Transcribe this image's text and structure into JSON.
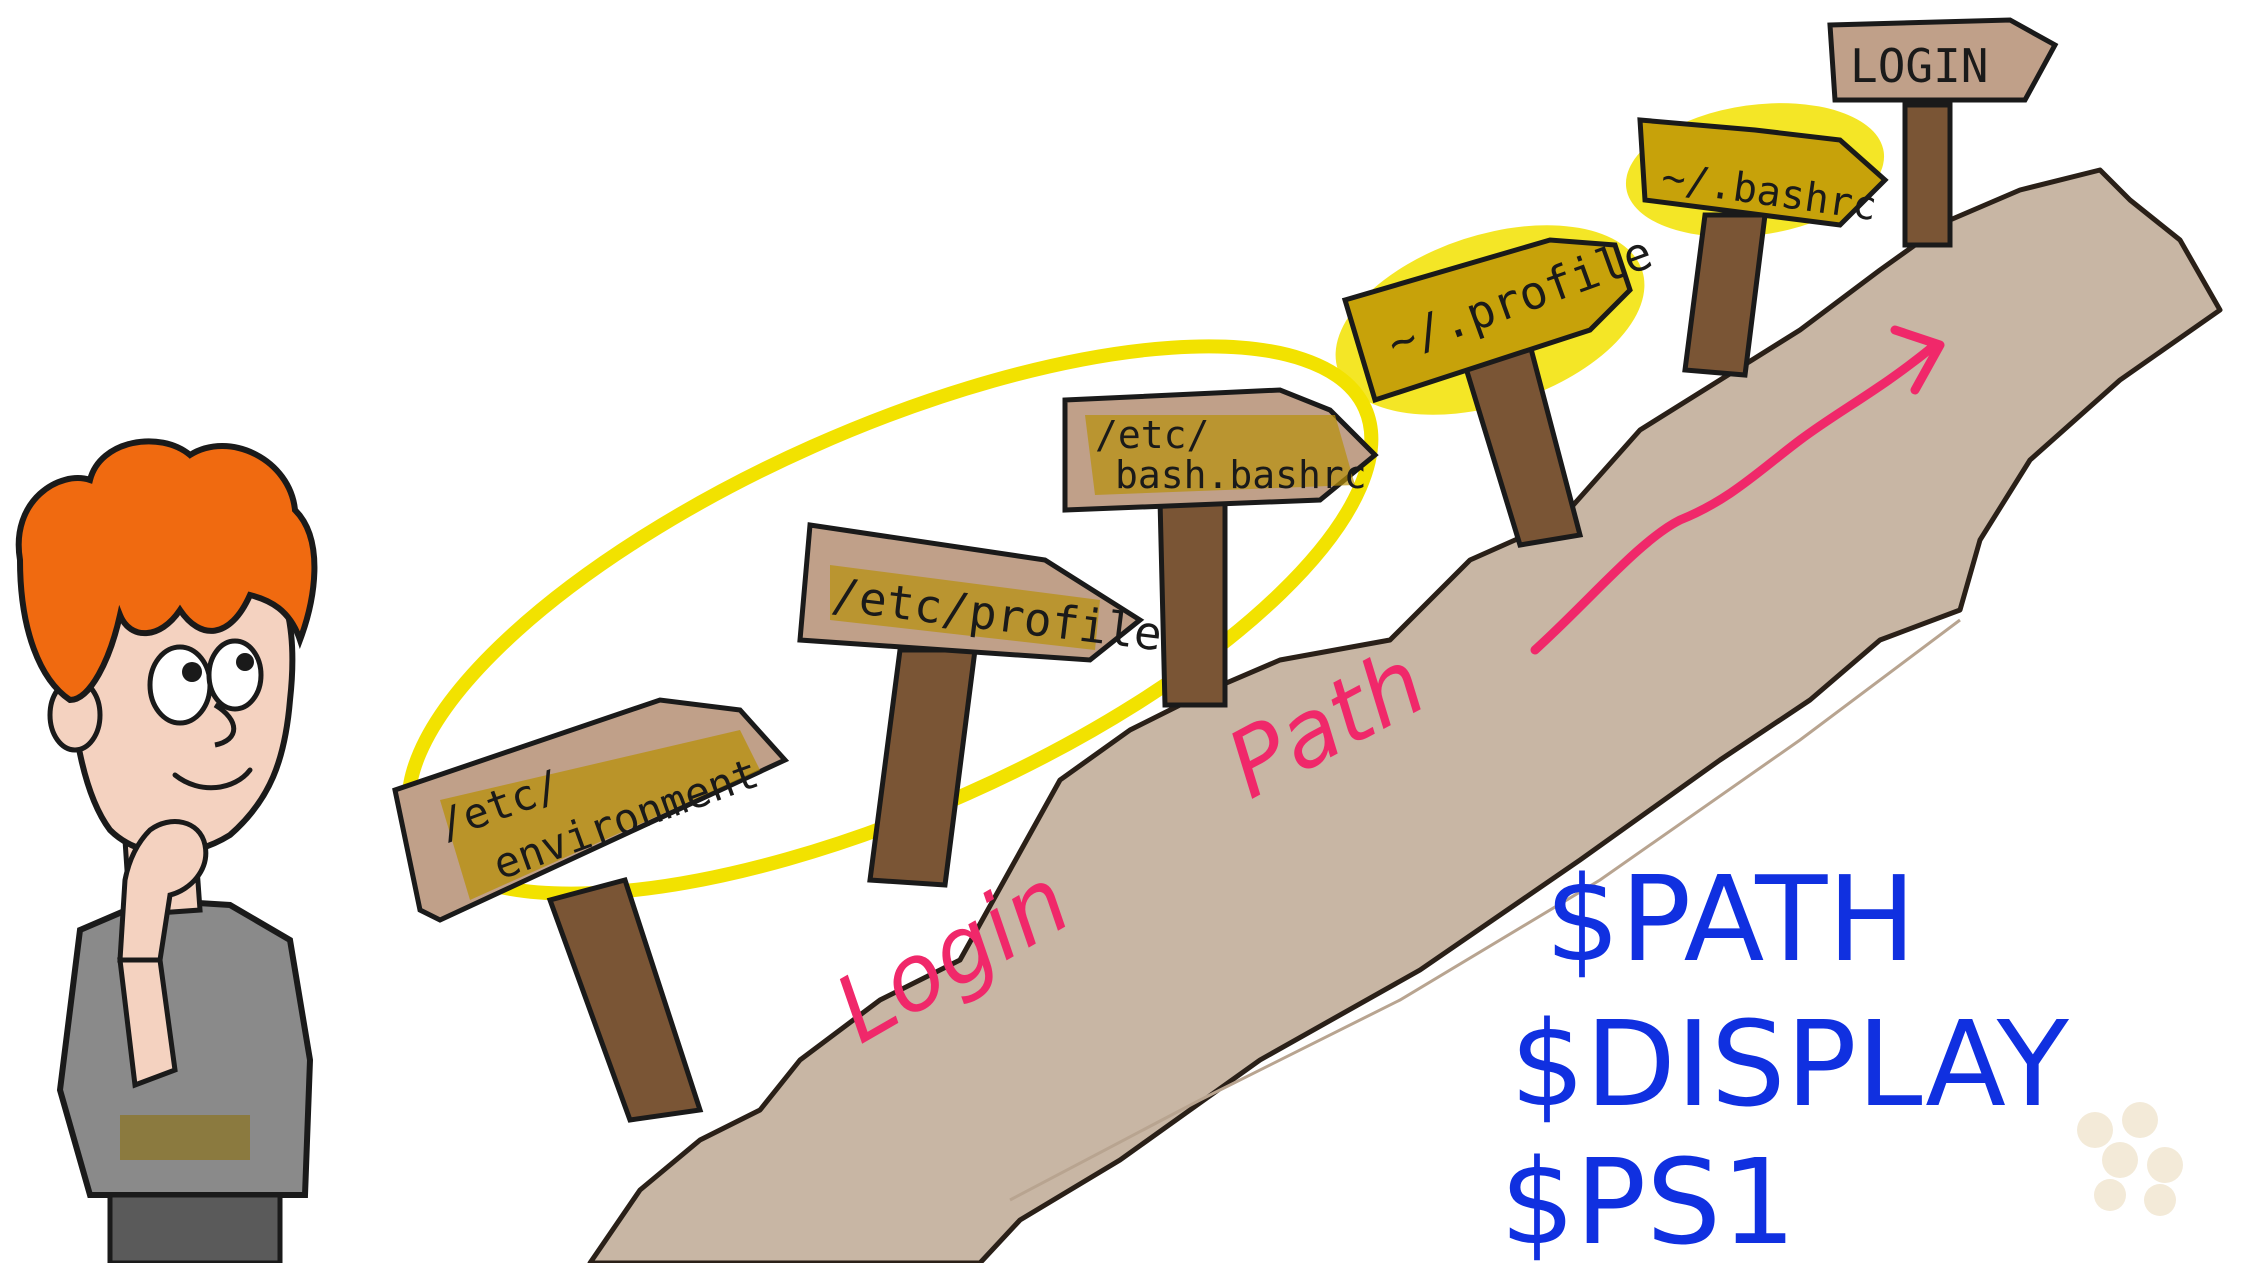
{
  "signs": [
    {
      "lines": [
        "/etc/",
        "environment"
      ]
    },
    {
      "lines": [
        "/etc/profile"
      ]
    },
    {
      "lines": [
        "/etc/",
        "bash.bashrc"
      ]
    },
    {
      "lines": [
        "~/.profile"
      ]
    },
    {
      "lines": [
        "~/.bashrc"
      ]
    },
    {
      "lines": [
        "LOGIN"
      ]
    }
  ],
  "path_label": [
    "Login",
    "Path"
  ],
  "variables": [
    "$PATH",
    "$DISPLAY",
    "$PS1"
  ],
  "colors": {
    "path": "#c8b6a4",
    "sign": "#c0a089",
    "highlight": "#f2e200",
    "pink": "#f0286a",
    "blue": "#1030e0",
    "hair": "#f06a10",
    "shirt": "#8a8a8a",
    "post": "#7a5535"
  }
}
